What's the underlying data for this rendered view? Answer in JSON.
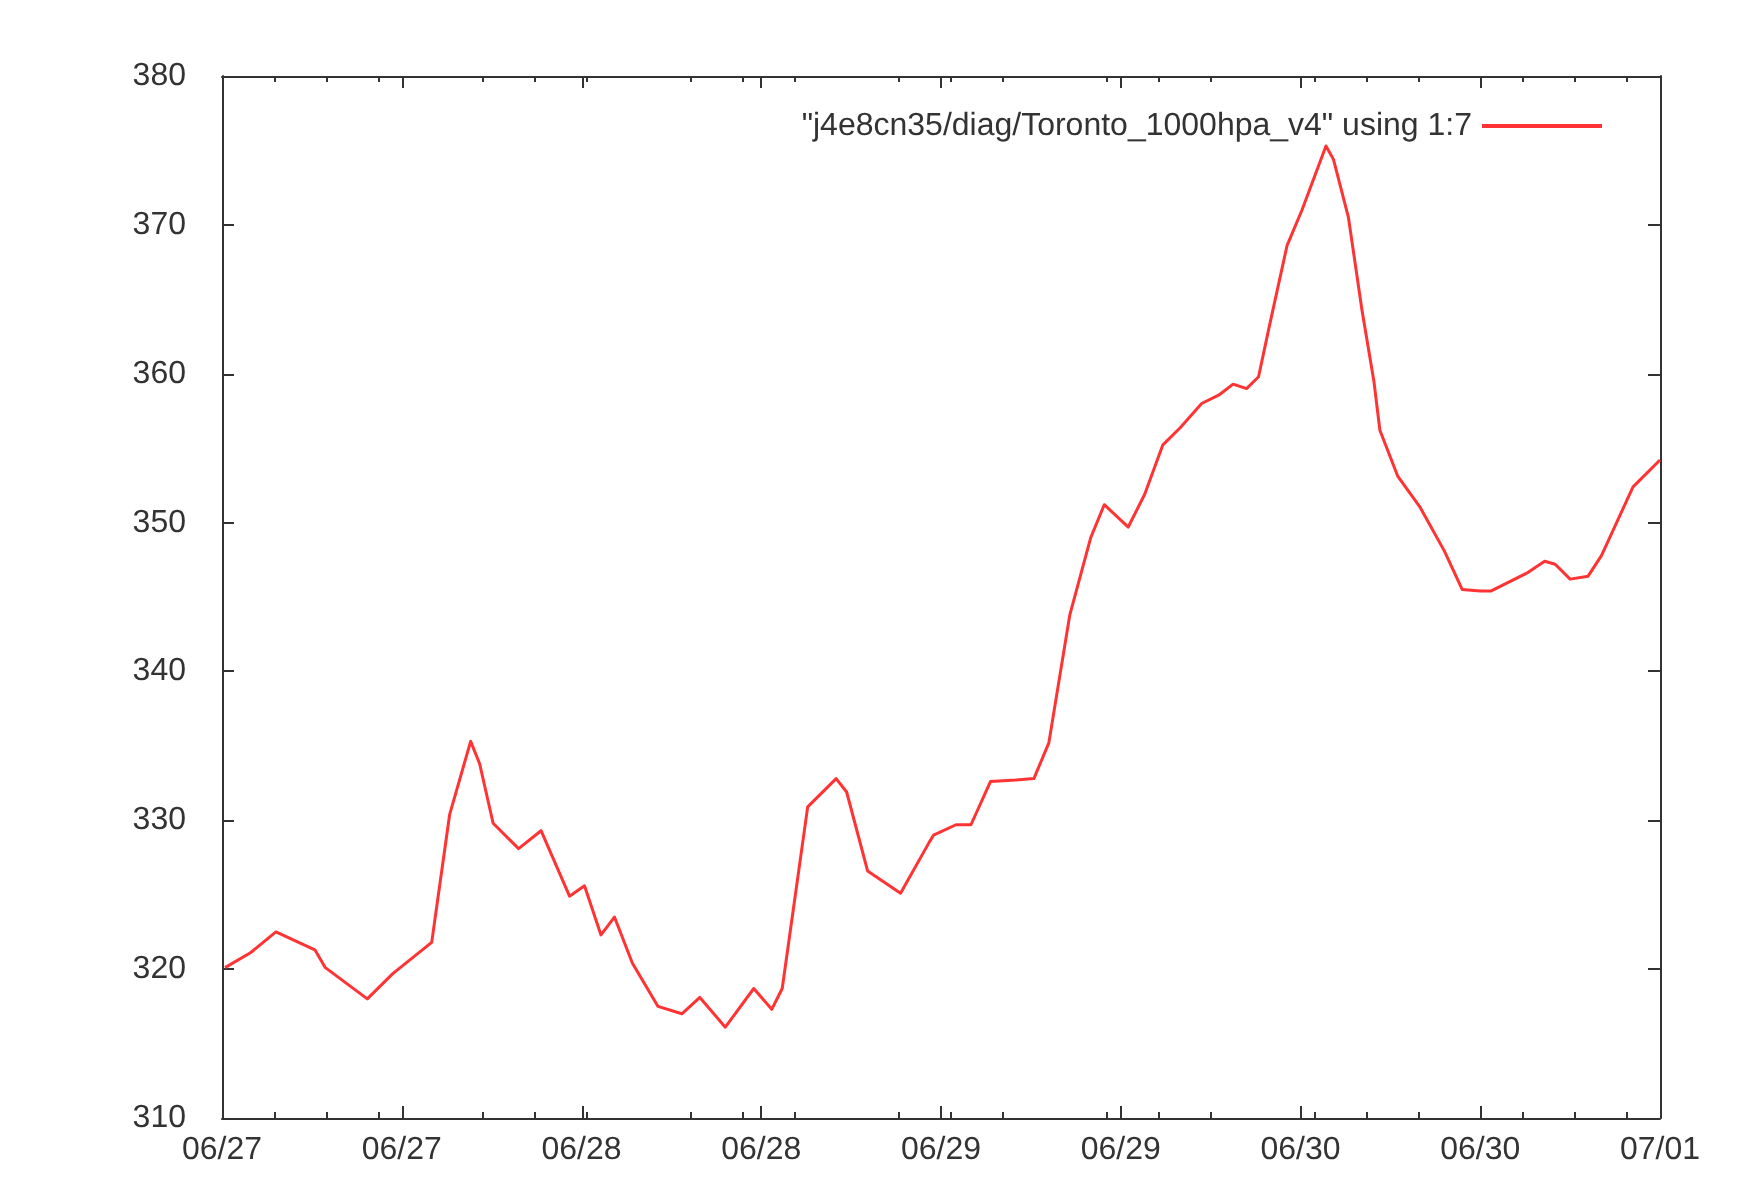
{
  "chart_data": {
    "type": "line",
    "x": [
      "--06-27T00:12",
      "--06-27T01:54",
      "--06-27T03:36",
      "--06-27T06:12",
      "--06-27T06:54",
      "--06-27T09:42",
      "--06-27T11:24",
      "--06-27T14:00",
      "--06-27T15:12",
      "--06-27T16:36",
      "--06-27T17:12",
      "--06-27T18:06",
      "--06-27T19:48",
      "--06-27T21:18",
      "--06-27T23:12",
      "--06-28T00:12",
      "--06-28T01:18",
      "--06-28T02:12",
      "--06-28T03:24",
      "--06-28T05:06",
      "--06-28T06:42",
      "--06-28T07:54",
      "--06-28T09:36",
      "--06-28T11:30",
      "--06-28T12:42",
      "--06-28T13:24",
      "--06-28T15:06",
      "--06-28T17:00",
      "--06-28T17:42",
      "--06-28T19:06",
      "--06-28T21:18",
      "--06-28T23:12",
      "--06-28T23:30",
      "--06-29T01:00",
      "--06-29T02:00",
      "--06-29T03:18",
      "--06-29T05:00",
      "--06-29T06:12",
      "--06-29T07:12",
      "--06-29T08:36",
      "--06-29T10:00",
      "--06-29T10:54",
      "--06-29T12:30",
      "--06-29T13:36",
      "--06-29T14:48",
      "--06-29T16:00",
      "--06-29T17:24",
      "--06-29T18:36",
      "--06-29T19:30",
      "--06-29T20:24",
      "--06-29T21:12",
      "--06-29T21:54",
      "--06-29T23:06",
      "--06-30T00:06",
      "--06-30T01:42",
      "--06-30T02:12",
      "--06-30T03:12",
      "--06-30T04:06",
      "--06-30T04:54",
      "--06-30T05:18",
      "--06-30T06:30",
      "--06-30T08:00",
      "--06-30T09:36",
      "--06-30T10:48",
      "--06-30T12:00",
      "--06-30T12:42",
      "--06-30T15:06",
      "--06-30T16:18",
      "--06-30T17:00",
      "--06-30T18:00",
      "--06-30T19:12",
      "--06-30T20:06",
      "--06-30T22:12",
      "--07-01T00:00"
    ],
    "series": [
      {
        "name": "\"j4e8cn35/diag/Toronto_1000hpa_v4\" using 1:7",
        "color": "#ff3333",
        "values": [
          320.1,
          321.1,
          322.5,
          321.3,
          320.1,
          318,
          319.7,
          321.8,
          330.4,
          335.3,
          333.8,
          329.8,
          328.1,
          329.3,
          324.9,
          325.6,
          322.3,
          323.5,
          320.4,
          317.5,
          317,
          318.1,
          316.1,
          318.7,
          317.3,
          318.7,
          330.9,
          332.8,
          331.9,
          326.6,
          325.1,
          328.5,
          329,
          329.7,
          329.7,
          332.6,
          332.7,
          332.8,
          335.2,
          343.8,
          349,
          351.2,
          349.7,
          351.9,
          355.2,
          356.4,
          358,
          358.6,
          359.3,
          359,
          359.8,
          363.1,
          368.6,
          371,
          375.3,
          374.4,
          370.5,
          364.3,
          359.5,
          356.2,
          353.1,
          351,
          348.1,
          345.5,
          345.4,
          345.4,
          346.6,
          347.4,
          347.2,
          346.2,
          346.4,
          347.8,
          352.4,
          354.2
        ]
      }
    ],
    "xlim": [
      "--06-27T00:00",
      "--07-01T00:00"
    ],
    "xticks": [
      {
        "value": "--06-27T00:00",
        "label": "06/27"
      },
      {
        "value": "--06-27T12:00",
        "label": "06/27"
      },
      {
        "value": "--06-28T00:00",
        "label": "06/28"
      },
      {
        "value": "--06-28T12:00",
        "label": "06/28"
      },
      {
        "value": "--06-29T00:00",
        "label": "06/29"
      },
      {
        "value": "--06-29T12:00",
        "label": "06/29"
      },
      {
        "value": "--06-30T00:00",
        "label": "06/30"
      },
      {
        "value": "--06-30T12:00",
        "label": "06/30"
      },
      {
        "value": "--07-01T00:00",
        "label": "07/01"
      }
    ],
    "ylim": [
      310,
      380
    ],
    "yticks": [
      310,
      320,
      330,
      340,
      350,
      360,
      370,
      380
    ],
    "grid": false,
    "legend": "top right",
    "marker": "none",
    "line_style": "solid"
  }
}
